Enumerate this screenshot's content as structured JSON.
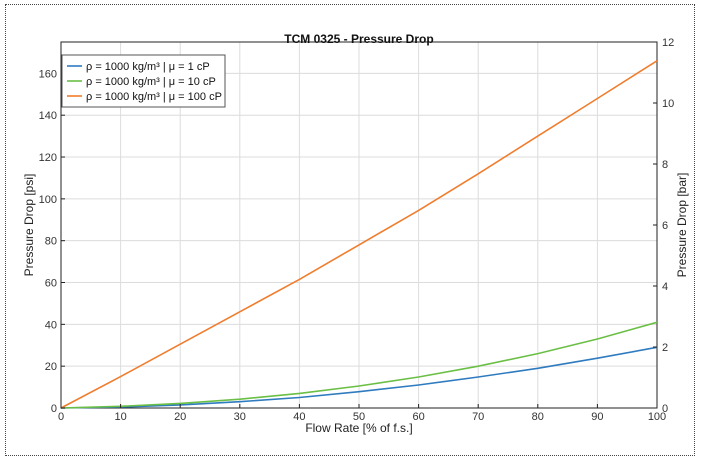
{
  "chart_data": {
    "type": "line",
    "title": "TCM 0325 - Pressure Drop",
    "xlabel": "Flow Rate [% of f.s.]",
    "ylabel": "Pressure Drop [psi]",
    "y2label": "Pressure Drop [bar]",
    "xlim": [
      0,
      100
    ],
    "ylim": [
      0,
      175
    ],
    "y2lim": [
      0,
      12
    ],
    "xticks": [
      0,
      10,
      20,
      30,
      40,
      50,
      60,
      70,
      80,
      90,
      100
    ],
    "yticks": [
      0,
      20,
      40,
      60,
      80,
      100,
      120,
      140,
      160
    ],
    "y2ticks": [
      0,
      2,
      4,
      6,
      8,
      10,
      12
    ],
    "grid": true,
    "legend_position": "top-left",
    "x": [
      0,
      10,
      20,
      30,
      40,
      50,
      60,
      70,
      80,
      90,
      100
    ],
    "series": [
      {
        "name": "ρ = 1000 kg/m³ | μ = 1 cP",
        "color": "#2f7bbf",
        "values": [
          0,
          0.5,
          1.5,
          3.0,
          5.0,
          7.8,
          11.0,
          14.8,
          19.0,
          23.8,
          29.0
        ]
      },
      {
        "name": "ρ = 1000 kg/m³ | μ = 10 cP",
        "color": "#6abf45",
        "values": [
          0,
          0.8,
          2.2,
          4.2,
          7.0,
          10.5,
          14.8,
          20.0,
          26.0,
          33.0,
          41.0
        ]
      },
      {
        "name": "ρ = 1000 kg/m³ | μ = 100 cP",
        "color": "#f07d2e",
        "values": [
          0,
          15.0,
          30.5,
          46.0,
          61.5,
          78.0,
          94.5,
          112.0,
          130.0,
          148.0,
          166.0
        ]
      }
    ]
  }
}
